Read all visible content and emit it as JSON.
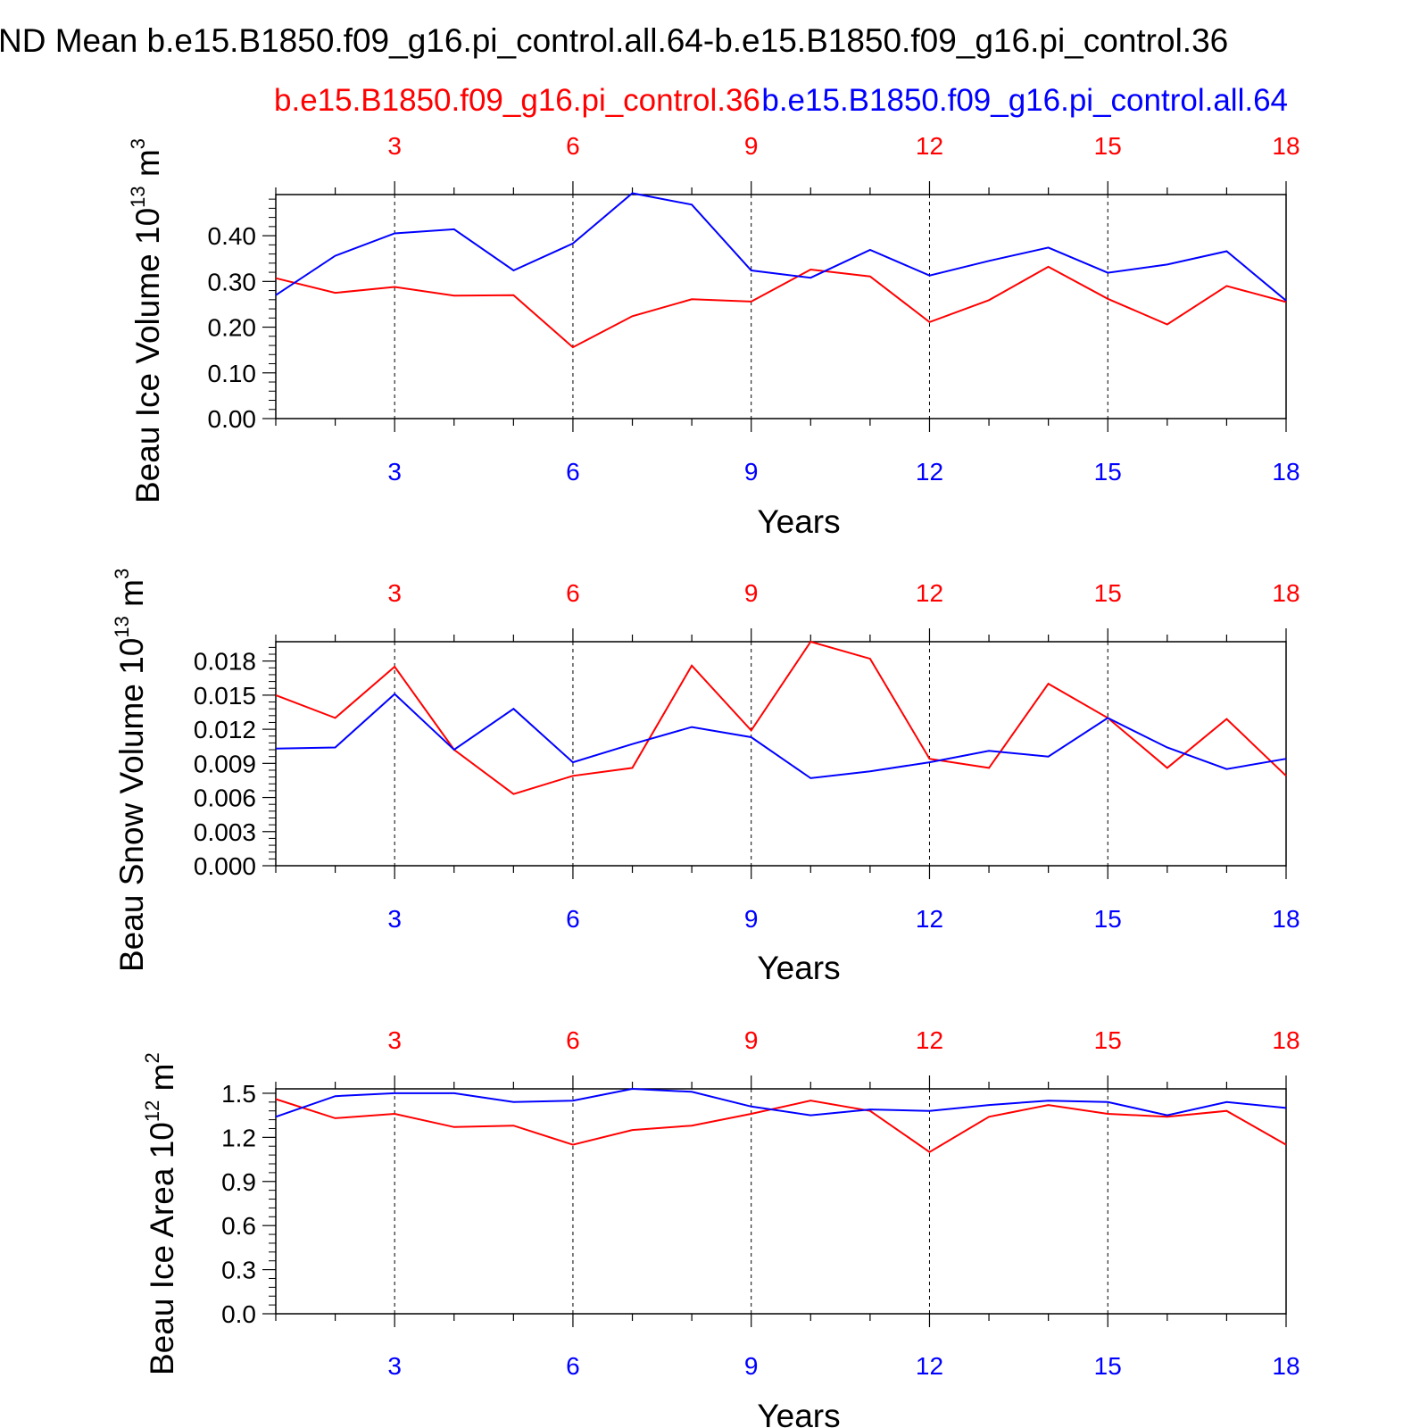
{
  "header": {
    "title": "ND Mean b.e15.B1850.f09_g16.pi_control.all.64-b.e15.B1850.f09_g16.pi_control.36",
    "legend_red": "b.e15.B1850.f09_g16.pi_control.36",
    "legend_blue": "b.e15.B1850.f09_g16.pi_control.all.64"
  },
  "colors": {
    "red_series": "#ff0000",
    "blue_series": "#0000ff",
    "axis": "#000000"
  },
  "chart_data": [
    {
      "type": "line",
      "title": "",
      "xlabel": "Years",
      "ylabel": "Beau Ice Volume",
      "ylabel_unit_base": " 10",
      "ylabel_unit_exp": "13",
      "ylabel_unit_tail": " m",
      "ylabel_unit_exp2": "3",
      "xlim": [
        1,
        18
      ],
      "ylim": [
        0.0,
        0.49
      ],
      "x_ticks": [
        3,
        6,
        9,
        12,
        15,
        18
      ],
      "x_tick_labels": [
        "3",
        "6",
        "9",
        "12",
        "15",
        "18"
      ],
      "y_ticks": [
        0.0,
        0.1,
        0.2,
        0.3,
        0.4
      ],
      "y_tick_labels": [
        "0.00",
        "0.10",
        "0.20",
        "0.30",
        "0.40"
      ],
      "x": [
        1,
        2,
        3,
        4,
        5,
        6,
        7,
        8,
        9,
        10,
        11,
        12,
        13,
        14,
        15,
        16,
        17,
        18
      ],
      "series": [
        {
          "name": "b.e15.B1850.f09_g16.pi_control.36",
          "color": "#ff0000",
          "values": [
            0.307,
            0.275,
            0.288,
            0.269,
            0.27,
            0.156,
            0.224,
            0.261,
            0.256,
            0.326,
            0.311,
            0.211,
            0.259,
            0.332,
            0.262,
            0.206,
            0.29,
            0.255
          ]
        },
        {
          "name": "b.e15.B1850.f09_g16.pi_control.all.64",
          "color": "#0000ff",
          "values": [
            0.27,
            0.356,
            0.405,
            0.414,
            0.324,
            0.383,
            0.493,
            0.468,
            0.324,
            0.308,
            0.369,
            0.313,
            0.345,
            0.374,
            0.319,
            0.337,
            0.366,
            0.258
          ]
        }
      ]
    },
    {
      "type": "line",
      "title": "",
      "xlabel": "Years",
      "ylabel": "Beau Snow Volume",
      "ylabel_unit_base": " 10",
      "ylabel_unit_exp": "13",
      "ylabel_unit_tail": " m",
      "ylabel_unit_exp2": "3",
      "xlim": [
        1,
        18
      ],
      "ylim": [
        0.0,
        0.0197
      ],
      "x_ticks": [
        3,
        6,
        9,
        12,
        15,
        18
      ],
      "x_tick_labels": [
        "3",
        "6",
        "9",
        "12",
        "15",
        "18"
      ],
      "y_ticks": [
        0.0,
        0.003,
        0.006,
        0.009,
        0.012,
        0.015,
        0.018
      ],
      "y_tick_labels": [
        "0.000",
        "0.003",
        "0.006",
        "0.009",
        "0.012",
        "0.015",
        "0.018"
      ],
      "x": [
        1,
        2,
        3,
        4,
        5,
        6,
        7,
        8,
        9,
        10,
        11,
        12,
        13,
        14,
        15,
        16,
        17,
        18
      ],
      "series": [
        {
          "name": "b.e15.B1850.f09_g16.pi_control.36",
          "color": "#ff0000",
          "values": [
            0.015,
            0.013,
            0.0175,
            0.0102,
            0.0063,
            0.0079,
            0.0086,
            0.0176,
            0.0119,
            0.0197,
            0.0182,
            0.0094,
            0.0086,
            0.016,
            0.013,
            0.0086,
            0.0129,
            0.0079
          ]
        },
        {
          "name": "b.e15.B1850.f09_g16.pi_control.all.64",
          "color": "#0000ff",
          "values": [
            0.0103,
            0.0104,
            0.0151,
            0.0102,
            0.0138,
            0.0091,
            0.0107,
            0.0122,
            0.0113,
            0.0077,
            0.0083,
            0.0091,
            0.0101,
            0.0096,
            0.013,
            0.0104,
            0.0085,
            0.0094
          ]
        }
      ]
    },
    {
      "type": "line",
      "title": "",
      "xlabel": "Years",
      "ylabel": "Beau Ice Area",
      "ylabel_unit_base": " 10",
      "ylabel_unit_exp": "12",
      "ylabel_unit_tail": " m",
      "ylabel_unit_exp2": "2",
      "xlim": [
        1,
        18
      ],
      "ylim": [
        0.0,
        1.53
      ],
      "x_ticks": [
        3,
        6,
        9,
        12,
        15,
        18
      ],
      "x_tick_labels": [
        "3",
        "6",
        "9",
        "12",
        "15",
        "18"
      ],
      "y_ticks": [
        0.0,
        0.3,
        0.6,
        0.9,
        1.2,
        1.5
      ],
      "y_tick_labels": [
        "0.0",
        "0.3",
        "0.6",
        "0.9",
        "1.2",
        "1.5"
      ],
      "x": [
        1,
        2,
        3,
        4,
        5,
        6,
        7,
        8,
        9,
        10,
        11,
        12,
        13,
        14,
        15,
        16,
        17,
        18
      ],
      "series": [
        {
          "name": "b.e15.B1850.f09_g16.pi_control.36",
          "color": "#ff0000",
          "values": [
            1.46,
            1.33,
            1.36,
            1.27,
            1.28,
            1.15,
            1.25,
            1.28,
            1.36,
            1.45,
            1.38,
            1.1,
            1.34,
            1.42,
            1.36,
            1.34,
            1.38,
            1.15
          ]
        },
        {
          "name": "b.e15.B1850.f09_g16.pi_control.all.64",
          "color": "#0000ff",
          "values": [
            1.34,
            1.48,
            1.5,
            1.5,
            1.44,
            1.45,
            1.53,
            1.51,
            1.41,
            1.35,
            1.39,
            1.38,
            1.42,
            1.45,
            1.44,
            1.35,
            1.44,
            1.4
          ]
        }
      ]
    }
  ]
}
